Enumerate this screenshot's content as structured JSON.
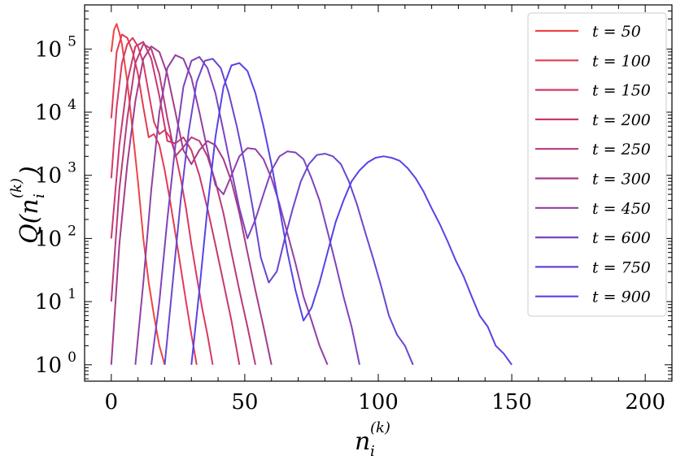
{
  "chart_data": {
    "type": "line",
    "title": "",
    "xlabel": "n_i^(k)",
    "ylabel": "Q(n_i^(k))",
    "xlim": [
      -10,
      210
    ],
    "ylim": [
      0.55,
      500000
    ],
    "yscale": "log",
    "grid": false,
    "legend_position": "top-right",
    "x_ticks": [
      0,
      50,
      100,
      150,
      200
    ],
    "x_tick_labels": [
      "0",
      "50",
      "100",
      "150",
      "200"
    ],
    "y_ticks": [
      1,
      10,
      100,
      1000,
      10000,
      100000
    ],
    "y_tick_labels": [
      "10^0",
      "10^1",
      "10^2",
      "10^3",
      "10^4",
      "10^5"
    ],
    "series": [
      {
        "name": "t = 50",
        "color": "#ee4444",
        "x": [
          0,
          1,
          2,
          3,
          4,
          5,
          6,
          8,
          10,
          12,
          14,
          16,
          18,
          20
        ],
        "y": [
          90000,
          200000,
          250000,
          180000,
          120000,
          60000,
          30000,
          5000,
          800,
          100,
          20,
          6,
          2,
          1
        ]
      },
      {
        "name": "t = 100",
        "color": "#e33b55",
        "x": [
          0,
          2,
          4,
          6,
          8,
          10,
          12,
          14,
          16,
          18,
          20,
          22,
          24,
          26,
          28,
          30,
          32
        ],
        "y": [
          8000,
          90000,
          170000,
          150000,
          90000,
          40000,
          12000,
          4000,
          4500,
          3000,
          1200,
          400,
          120,
          35,
          10,
          3,
          1
        ]
      },
      {
        "name": "t = 150",
        "color": "#d83a64",
        "x": [
          0,
          2,
          4,
          6,
          8,
          10,
          12,
          14,
          16,
          18,
          20,
          22,
          24,
          26,
          28,
          30,
          32,
          34,
          36,
          38
        ],
        "y": [
          900,
          12000,
          60000,
          120000,
          150000,
          110000,
          60000,
          20000,
          7000,
          4500,
          5200,
          4000,
          2200,
          900,
          300,
          80,
          25,
          8,
          3,
          1
        ]
      },
      {
        "name": "t = 200",
        "color": "#c8386f",
        "x": [
          0,
          3,
          6,
          9,
          12,
          15,
          18,
          21,
          24,
          27,
          30,
          33,
          36,
          39,
          42,
          45,
          48
        ],
        "y": [
          100,
          3000,
          30000,
          110000,
          130000,
          70000,
          18000,
          3500,
          3200,
          4000,
          2500,
          1000,
          300,
          80,
          20,
          5,
          1
        ]
      },
      {
        "name": "t = 250",
        "color": "#b83a7c",
        "x": [
          0,
          3,
          6,
          9,
          12,
          15,
          18,
          21,
          24,
          27,
          30,
          33,
          36,
          39,
          42,
          45,
          48,
          51,
          54
        ],
        "y": [
          10,
          600,
          8000,
          60000,
          120000,
          100000,
          40000,
          8000,
          2000,
          2800,
          4000,
          3500,
          2000,
          800,
          250,
          60,
          15,
          4,
          1
        ]
      },
      {
        "name": "t = 300",
        "color": "#a43b8c",
        "x": [
          0,
          3,
          6,
          9,
          12,
          15,
          18,
          21,
          24,
          27,
          30,
          33,
          36,
          39,
          42,
          45,
          48,
          51,
          54,
          57,
          60
        ],
        "y": [
          1,
          80,
          1500,
          15000,
          70000,
          110000,
          90000,
          40000,
          10000,
          2500,
          1500,
          2500,
          3500,
          3000,
          1800,
          800,
          250,
          60,
          15,
          4,
          1
        ]
      },
      {
        "name": "t = 450",
        "color": "#9140a6",
        "x": [
          9,
          12,
          15,
          18,
          21,
          24,
          27,
          30,
          33,
          36,
          39,
          42,
          45,
          48,
          51,
          54,
          57,
          60,
          63,
          66,
          69,
          72,
          75,
          78,
          81
        ],
        "y": [
          1,
          20,
          600,
          10000,
          50000,
          80000,
          70000,
          35000,
          10000,
          2500,
          700,
          500,
          1000,
          2000,
          2700,
          2600,
          1800,
          900,
          350,
          120,
          40,
          12,
          5,
          2,
          1
        ]
      },
      {
        "name": "t = 600",
        "color": "#7e43bd",
        "x": [
          15,
          18,
          21,
          24,
          27,
          30,
          33,
          36,
          39,
          42,
          45,
          48,
          51,
          54,
          57,
          60,
          63,
          66,
          69,
          72,
          75,
          78,
          81,
          84,
          87,
          90,
          93
        ],
        "y": [
          1,
          10,
          200,
          3000,
          25000,
          65000,
          75000,
          50000,
          20000,
          5000,
          1200,
          300,
          100,
          200,
          500,
          1200,
          2000,
          2400,
          2300,
          1800,
          900,
          400,
          130,
          40,
          12,
          4,
          1
        ]
      },
      {
        "name": "t = 750",
        "color": "#6a46d0",
        "x": [
          20,
          23,
          26,
          29,
          32,
          35,
          38,
          41,
          44,
          47,
          50,
          53,
          56,
          59,
          62,
          65,
          68,
          71,
          74,
          77,
          80,
          83,
          86,
          89,
          92,
          95,
          98,
          101,
          104,
          107,
          110,
          113
        ],
        "y": [
          1,
          20,
          400,
          5000,
          30000,
          65000,
          70000,
          50000,
          20000,
          6000,
          1500,
          300,
          50,
          20,
          30,
          100,
          300,
          800,
          1500,
          2100,
          2200,
          2000,
          1500,
          800,
          350,
          130,
          50,
          18,
          6,
          3,
          2,
          1
        ]
      },
      {
        "name": "t = 900",
        "color": "#5544e6",
        "x": [
          30,
          33,
          36,
          39,
          42,
          45,
          48,
          51,
          54,
          57,
          60,
          63,
          66,
          69,
          72,
          75,
          78,
          81,
          84,
          87,
          90,
          93,
          96,
          99,
          102,
          105,
          108,
          111,
          114,
          117,
          120,
          123,
          126,
          129,
          132,
          135,
          138,
          141,
          144,
          147,
          150
        ],
        "y": [
          1,
          15,
          300,
          4000,
          25000,
          55000,
          60000,
          45000,
          20000,
          6000,
          1500,
          300,
          60,
          15,
          5,
          8,
          20,
          60,
          180,
          400,
          800,
          1200,
          1600,
          1900,
          2000,
          1900,
          1700,
          1300,
          900,
          550,
          300,
          170,
          90,
          45,
          25,
          12,
          6,
          4,
          2,
          1.5,
          1
        ]
      }
    ]
  }
}
